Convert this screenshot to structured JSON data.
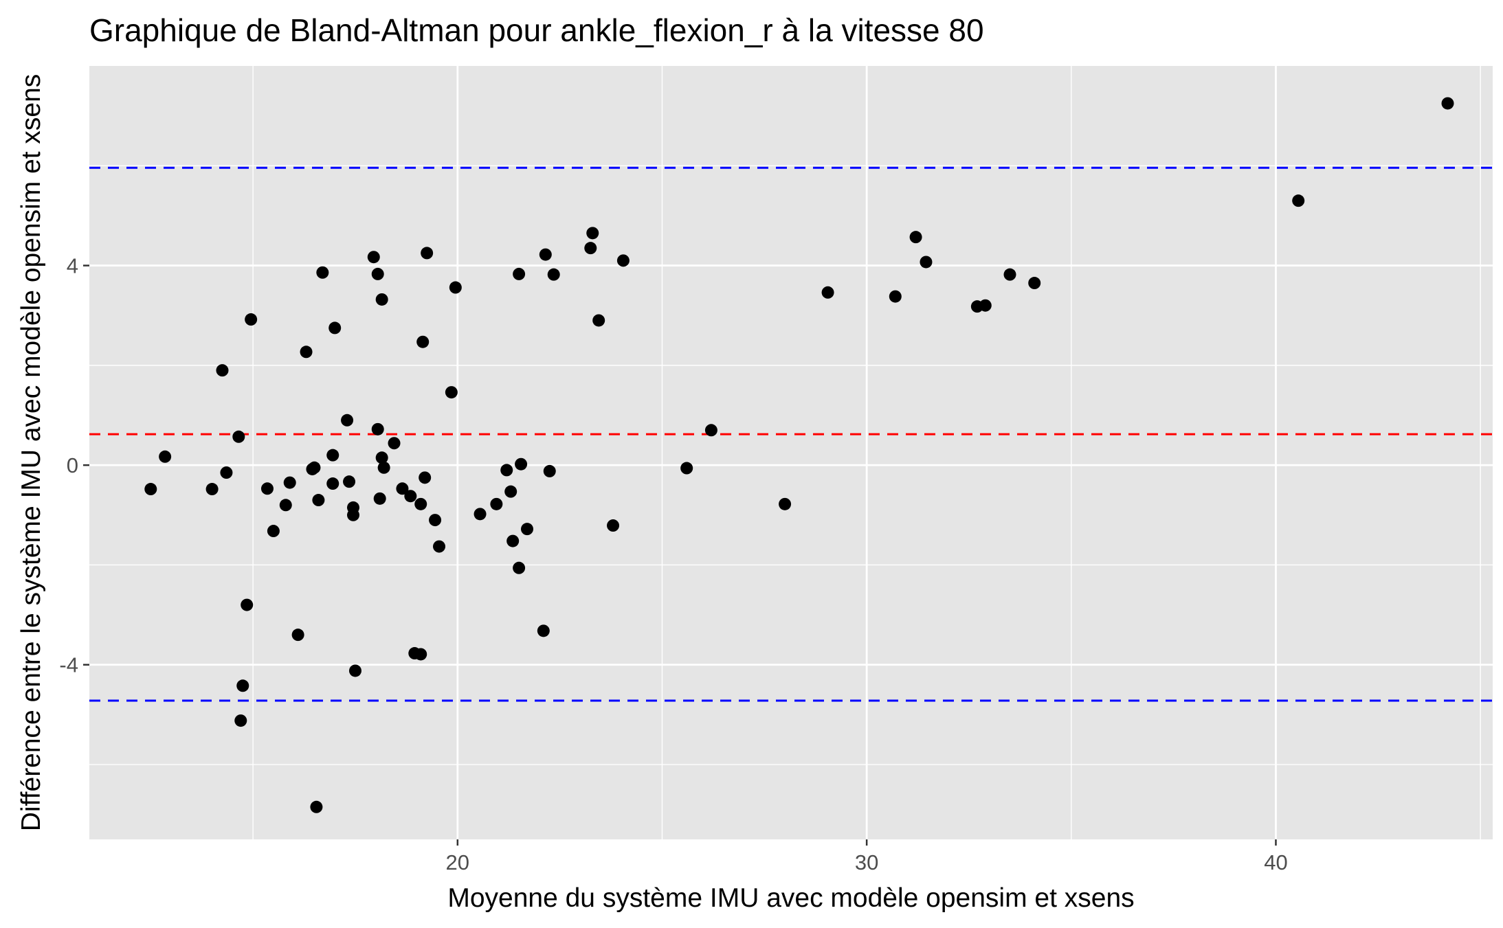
{
  "chart_data": {
    "type": "scatter",
    "title": "Graphique de Bland-Altman pour ankle_flexion_r à la vitesse 80",
    "xlabel": "Moyenne du système IMU avec modèle opensim et xsens",
    "ylabel": "Différence entre le système IMU avec modèle opensim et xsens",
    "xlim": [
      11.0,
      45.3
    ],
    "ylim": [
      -7.5,
      8.0
    ],
    "x_ticks": [
      20,
      30,
      40
    ],
    "x_tick_labels": [
      "20",
      "30",
      "40"
    ],
    "y_ticks": [
      -4,
      0,
      4
    ],
    "y_tick_labels": [
      "-4",
      "0",
      "4"
    ],
    "grid": true,
    "mean_line": 0.62,
    "upper_limit": 5.96,
    "lower_limit": -4.72,
    "colors": {
      "panel": "#e5e5e5",
      "grid": "#ffffff",
      "points": "#000000",
      "mean_line": "#ff0000",
      "limit_lines": "#0000ff"
    },
    "points": [
      {
        "x": 12.5,
        "y": -0.48
      },
      {
        "x": 12.85,
        "y": 0.17
      },
      {
        "x": 14.0,
        "y": -0.48
      },
      {
        "x": 14.25,
        "y": 1.9
      },
      {
        "x": 14.35,
        "y": -0.15
      },
      {
        "x": 14.65,
        "y": 0.57
      },
      {
        "x": 14.7,
        "y": -5.12
      },
      {
        "x": 14.75,
        "y": -4.42
      },
      {
        "x": 14.85,
        "y": -2.8
      },
      {
        "x": 14.95,
        "y": 2.92
      },
      {
        "x": 15.35,
        "y": -0.47
      },
      {
        "x": 15.5,
        "y": -1.32
      },
      {
        "x": 15.8,
        "y": -0.8
      },
      {
        "x": 15.9,
        "y": -0.35
      },
      {
        "x": 16.1,
        "y": -3.4
      },
      {
        "x": 16.3,
        "y": 2.27
      },
      {
        "x": 16.45,
        "y": -0.08
      },
      {
        "x": 16.5,
        "y": -0.05
      },
      {
        "x": 16.55,
        "y": -6.85
      },
      {
        "x": 16.6,
        "y": -0.7
      },
      {
        "x": 16.7,
        "y": 3.86
      },
      {
        "x": 16.95,
        "y": -0.37
      },
      {
        "x": 16.95,
        "y": 0.2
      },
      {
        "x": 17.0,
        "y": 2.75
      },
      {
        "x": 17.3,
        "y": 0.9
      },
      {
        "x": 17.35,
        "y": -0.33
      },
      {
        "x": 17.45,
        "y": -0.85
      },
      {
        "x": 17.45,
        "y": -1.0
      },
      {
        "x": 17.5,
        "y": -4.12
      },
      {
        "x": 17.95,
        "y": 4.17
      },
      {
        "x": 18.05,
        "y": 0.72
      },
      {
        "x": 18.05,
        "y": 3.83
      },
      {
        "x": 18.1,
        "y": -0.67
      },
      {
        "x": 18.15,
        "y": 3.32
      },
      {
        "x": 18.15,
        "y": 0.15
      },
      {
        "x": 18.2,
        "y": -0.05
      },
      {
        "x": 18.45,
        "y": 0.44
      },
      {
        "x": 18.65,
        "y": -0.47
      },
      {
        "x": 18.85,
        "y": -0.62
      },
      {
        "x": 18.95,
        "y": -3.77
      },
      {
        "x": 19.1,
        "y": -3.79
      },
      {
        "x": 19.1,
        "y": -0.78
      },
      {
        "x": 19.15,
        "y": 2.47
      },
      {
        "x": 19.2,
        "y": -0.25
      },
      {
        "x": 19.25,
        "y": 4.25
      },
      {
        "x": 19.45,
        "y": -1.1
      },
      {
        "x": 19.55,
        "y": -1.63
      },
      {
        "x": 19.85,
        "y": 1.46
      },
      {
        "x": 19.95,
        "y": 3.56
      },
      {
        "x": 20.55,
        "y": -0.98
      },
      {
        "x": 20.95,
        "y": -0.78
      },
      {
        "x": 21.2,
        "y": -0.1
      },
      {
        "x": 21.3,
        "y": -0.53
      },
      {
        "x": 21.35,
        "y": -1.52
      },
      {
        "x": 21.5,
        "y": 3.83
      },
      {
        "x": 21.5,
        "y": -2.06
      },
      {
        "x": 21.55,
        "y": 0.02
      },
      {
        "x": 21.7,
        "y": -1.28
      },
      {
        "x": 22.1,
        "y": -3.32
      },
      {
        "x": 22.15,
        "y": 4.22
      },
      {
        "x": 22.25,
        "y": -0.12
      },
      {
        "x": 22.35,
        "y": 3.82
      },
      {
        "x": 23.25,
        "y": 4.35
      },
      {
        "x": 23.3,
        "y": 4.65
      },
      {
        "x": 23.45,
        "y": 2.9
      },
      {
        "x": 23.8,
        "y": -1.21
      },
      {
        "x": 24.05,
        "y": 4.1
      },
      {
        "x": 25.6,
        "y": -0.06
      },
      {
        "x": 26.2,
        "y": 0.7
      },
      {
        "x": 28.0,
        "y": -0.78
      },
      {
        "x": 29.05,
        "y": 3.46
      },
      {
        "x": 30.7,
        "y": 3.38
      },
      {
        "x": 31.2,
        "y": 4.57
      },
      {
        "x": 31.45,
        "y": 4.07
      },
      {
        "x": 32.7,
        "y": 3.18
      },
      {
        "x": 32.9,
        "y": 3.2
      },
      {
        "x": 33.5,
        "y": 3.82
      },
      {
        "x": 34.1,
        "y": 3.65
      },
      {
        "x": 40.55,
        "y": 5.3
      },
      {
        "x": 44.2,
        "y": 7.25
      }
    ]
  }
}
